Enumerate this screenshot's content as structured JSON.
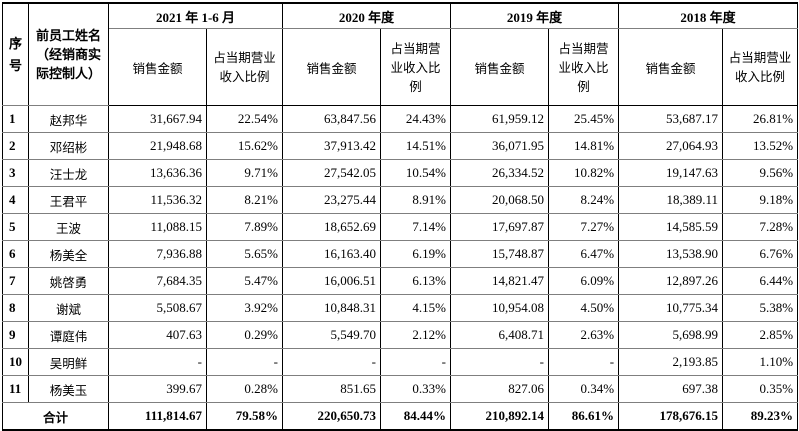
{
  "headers": {
    "seq": "序号",
    "name": "前员工姓名（经销商实际控制人）",
    "periods": [
      "2021 年 1-6 月",
      "2020 年度",
      "2019 年度",
      "2018 年度"
    ],
    "sales_amount": "销售金额",
    "ratio": "占当期营业收入比例"
  },
  "rows": [
    {
      "seq": "1",
      "name": "赵邦华",
      "v": [
        "31,667.94",
        "22.54%",
        "63,847.56",
        "24.43%",
        "61,959.12",
        "25.45%",
        "53,687.17",
        "26.81%"
      ]
    },
    {
      "seq": "2",
      "name": "邓绍彬",
      "v": [
        "21,948.68",
        "15.62%",
        "37,913.42",
        "14.51%",
        "36,071.95",
        "14.81%",
        "27,064.93",
        "13.52%"
      ]
    },
    {
      "seq": "3",
      "name": "汪士龙",
      "v": [
        "13,636.36",
        "9.71%",
        "27,542.05",
        "10.54%",
        "26,334.52",
        "10.82%",
        "19,147.63",
        "9.56%"
      ]
    },
    {
      "seq": "4",
      "name": "王君平",
      "v": [
        "11,536.32",
        "8.21%",
        "23,275.44",
        "8.91%",
        "20,068.50",
        "8.24%",
        "18,389.11",
        "9.18%"
      ]
    },
    {
      "seq": "5",
      "name": "王波",
      "v": [
        "11,088.15",
        "7.89%",
        "18,652.69",
        "7.14%",
        "17,697.87",
        "7.27%",
        "14,585.59",
        "7.28%"
      ]
    },
    {
      "seq": "6",
      "name": "杨美全",
      "v": [
        "7,936.88",
        "5.65%",
        "16,163.40",
        "6.19%",
        "15,748.87",
        "6.47%",
        "13,538.90",
        "6.76%"
      ]
    },
    {
      "seq": "7",
      "name": "姚啓勇",
      "v": [
        "7,684.35",
        "5.47%",
        "16,006.51",
        "6.13%",
        "14,821.47",
        "6.09%",
        "12,897.26",
        "6.44%"
      ]
    },
    {
      "seq": "8",
      "name": "谢斌",
      "v": [
        "5,508.67",
        "3.92%",
        "10,848.31",
        "4.15%",
        "10,954.08",
        "4.50%",
        "10,775.34",
        "5.38%"
      ]
    },
    {
      "seq": "9",
      "name": "谭庭伟",
      "v": [
        "407.63",
        "0.29%",
        "5,549.70",
        "2.12%",
        "6,408.71",
        "2.63%",
        "5,698.99",
        "2.85%"
      ]
    },
    {
      "seq": "10",
      "name": "吴明鲜",
      "v": [
        "-",
        "-",
        "-",
        "-",
        "-",
        "-",
        "2,193.85",
        "1.10%"
      ]
    },
    {
      "seq": "11",
      "name": "杨美玉",
      "v": [
        "399.67",
        "0.28%",
        "851.65",
        "0.33%",
        "827.06",
        "0.34%",
        "697.38",
        "0.35%"
      ]
    }
  ],
  "total": {
    "label": "合计",
    "v": [
      "111,814.67",
      "79.58%",
      "220,650.73",
      "84.44%",
      "210,892.14",
      "86.61%",
      "178,676.15",
      "89.23%"
    ]
  }
}
